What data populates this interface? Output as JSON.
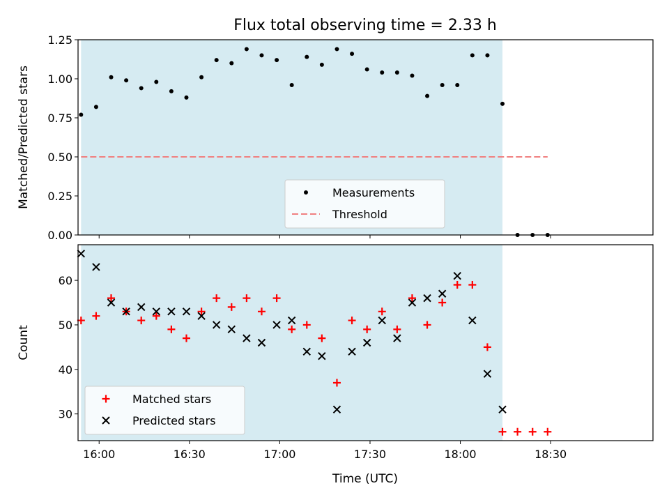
{
  "colors": {
    "observation_band": "#add8e6",
    "measurement": "#000000",
    "threshold": "#f08080",
    "matched": "#ff0000",
    "predicted": "#000000"
  },
  "chart_data": [
    {
      "type": "scatter",
      "title": "Flux total observing time = 2.33 h",
      "xlabel": "",
      "ylabel": "Matched/Predicted stars",
      "xlim": [
        "15:53",
        "19:04"
      ],
      "ylim": [
        0,
        1.25
      ],
      "yticks": [
        "0.00",
        "0.25",
        "0.50",
        "0.75",
        "1.00",
        "1.25"
      ],
      "observing_window": [
        "15:54",
        "18:14"
      ],
      "legend_position": "lower center",
      "series": [
        {
          "name": "Measurements",
          "kind": "points",
          "x": [
            "15:54",
            "15:59",
            "16:04",
            "16:09",
            "16:14",
            "16:19",
            "16:24",
            "16:29",
            "16:34",
            "16:39",
            "16:44",
            "16:49",
            "16:54",
            "16:59",
            "17:04",
            "17:09",
            "17:14",
            "17:19",
            "17:24",
            "17:29",
            "17:34",
            "17:39",
            "17:44",
            "17:49",
            "17:54",
            "17:59",
            "18:04",
            "18:09",
            "18:14",
            "18:19",
            "18:24",
            "18:29"
          ],
          "y": [
            0.77,
            0.82,
            1.01,
            0.99,
            0.94,
            0.98,
            0.92,
            0.88,
            1.01,
            1.12,
            1.1,
            1.19,
            1.15,
            1.12,
            0.96,
            1.14,
            1.09,
            1.19,
            1.16,
            1.06,
            1.04,
            1.04,
            1.02,
            0.89,
            0.96,
            0.96,
            1.15,
            1.15,
            0.84,
            0.0,
            0.0,
            0.0
          ]
        },
        {
          "name": "Threshold",
          "kind": "dashed-line",
          "x": [
            "15:54",
            "18:29"
          ],
          "y": [
            0.5,
            0.5
          ]
        }
      ]
    },
    {
      "type": "scatter",
      "title": "",
      "xlabel": "Time (UTC)",
      "ylabel": "Count",
      "xlim": [
        "15:53",
        "19:04"
      ],
      "ylim": [
        24,
        68
      ],
      "xticks": [
        "16:00",
        "16:30",
        "17:00",
        "17:30",
        "18:00",
        "18:30"
      ],
      "yticks": [
        "30",
        "40",
        "50",
        "60"
      ],
      "observing_window": [
        "15:54",
        "18:14"
      ],
      "legend_position": "lower left",
      "series": [
        {
          "name": "Matched stars",
          "marker": "+",
          "x": [
            "15:54",
            "15:59",
            "16:04",
            "16:09",
            "16:14",
            "16:19",
            "16:24",
            "16:29",
            "16:34",
            "16:39",
            "16:44",
            "16:49",
            "16:54",
            "16:59",
            "17:04",
            "17:09",
            "17:14",
            "17:19",
            "17:24",
            "17:29",
            "17:34",
            "17:39",
            "17:44",
            "17:49",
            "17:54",
            "17:59",
            "18:04",
            "18:09",
            "18:14",
            "18:19",
            "18:24",
            "18:29"
          ],
          "y": [
            51,
            52,
            56,
            53,
            51,
            52,
            49,
            47,
            53,
            56,
            54,
            56,
            53,
            56,
            49,
            50,
            47,
            37,
            51,
            49,
            53,
            49,
            56,
            50,
            55,
            59,
            59,
            45,
            26,
            26,
            26,
            26
          ]
        },
        {
          "name": "Predicted stars",
          "marker": "x",
          "x": [
            "15:54",
            "15:59",
            "16:04",
            "16:09",
            "16:14",
            "16:19",
            "16:24",
            "16:29",
            "16:34",
            "16:39",
            "16:44",
            "16:49",
            "16:54",
            "16:59",
            "17:04",
            "17:09",
            "17:14",
            "17:19",
            "17:24",
            "17:29",
            "17:34",
            "17:39",
            "17:44",
            "17:49",
            "17:54",
            "17:59",
            "18:04",
            "18:09",
            "18:14"
          ],
          "y": [
            66,
            63,
            55,
            53,
            54,
            53,
            53,
            53,
            52,
            50,
            49,
            47,
            46,
            50,
            51,
            44,
            43,
            31,
            44,
            46,
            51,
            47,
            55,
            56,
            57,
            61,
            51,
            39,
            31
          ]
        }
      ]
    }
  ]
}
